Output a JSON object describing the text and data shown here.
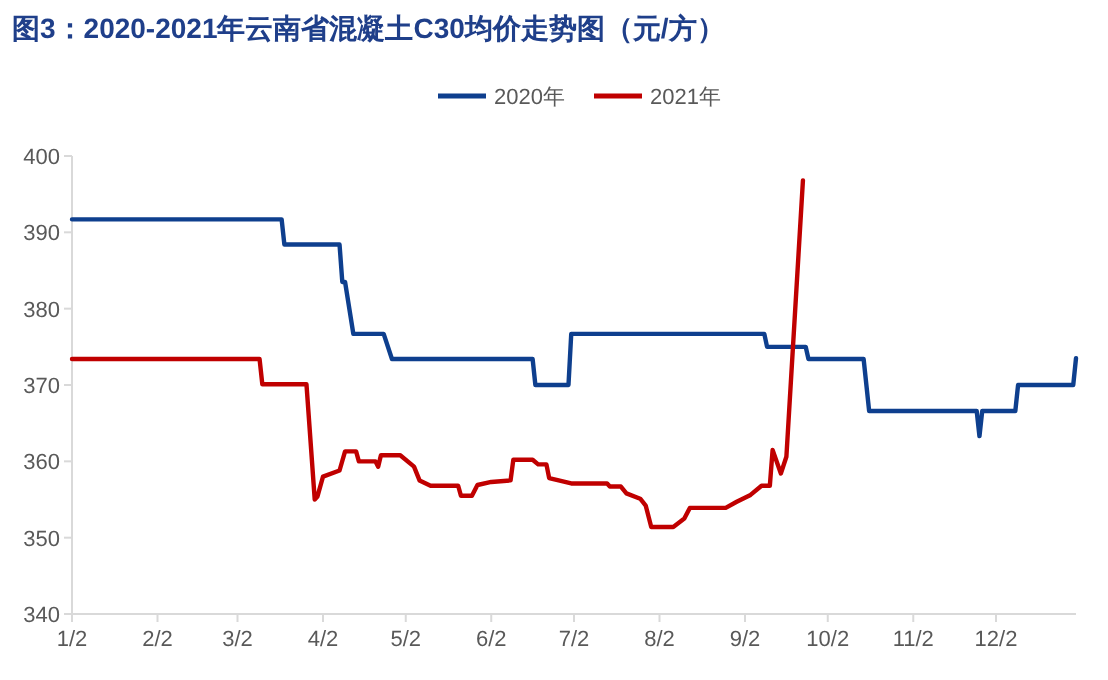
{
  "chart_data": {
    "type": "line",
    "title": "图3：2020-2021年云南省混凝土C30均价走势图（元/方）",
    "legend": "top",
    "grid": false,
    "xlim": [
      "--01-02",
      "--12-31"
    ],
    "xticks": [
      {
        "value": "--01-02",
        "label": "1/2"
      },
      {
        "value": "--02-02",
        "label": "2/2"
      },
      {
        "value": "--03-02",
        "label": "3/2"
      },
      {
        "value": "--04-02",
        "label": "4/2"
      },
      {
        "value": "--05-02",
        "label": "5/2"
      },
      {
        "value": "--06-02",
        "label": "6/2"
      },
      {
        "value": "--07-02",
        "label": "7/2"
      },
      {
        "value": "--08-02",
        "label": "8/2"
      },
      {
        "value": "--09-02",
        "label": "9/2"
      },
      {
        "value": "--10-02",
        "label": "10/2"
      },
      {
        "value": "--11-02",
        "label": "11/2"
      },
      {
        "value": "--12-02",
        "label": "12/2"
      }
    ],
    "ylim": [
      340,
      400
    ],
    "yticks": [
      340,
      350,
      360,
      370,
      380,
      390,
      400
    ],
    "series": [
      {
        "name": "2020年",
        "color": "#0e3f8e",
        "x": [
          "--01-02",
          "--03-18",
          "--03-19",
          "--04-08",
          "--04-09",
          "--04-10",
          "--04-13",
          "--04-24",
          "--04-27",
          "--06-17",
          "--06-18",
          "--06-30",
          "--07-01",
          "--09-09",
          "--09-10",
          "--09-24",
          "--09-25",
          "--10-15",
          "--10-17",
          "--11-25",
          "--11-26",
          "--11-27",
          "--12-09",
          "--12-10",
          "--12-30",
          "--12-31"
        ],
        "values": [
          391.7,
          391.7,
          388.4,
          388.4,
          383.5,
          383.5,
          376.7,
          376.7,
          373.4,
          373.4,
          370.0,
          370.0,
          376.7,
          376.7,
          375.0,
          375.0,
          373.4,
          373.4,
          366.6,
          366.6,
          363.3,
          366.6,
          366.6,
          370.0,
          370.0,
          373.5
        ]
      },
      {
        "name": "2021年",
        "color": "#c00000",
        "x": [
          "--01-02",
          "--03-10",
          "--03-11",
          "--03-27",
          "--03-30",
          "--03-31",
          "--04-02",
          "--04-08",
          "--04-10",
          "--04-14",
          "--04-15",
          "--04-21",
          "--04-22",
          "--04-23",
          "--04-30",
          "--05-05",
          "--05-07",
          "--05-11",
          "--05-21",
          "--05-22",
          "--05-26",
          "--05-28",
          "--06-02",
          "--06-09",
          "--06-10",
          "--06-17",
          "--06-19",
          "--06-22",
          "--06-23",
          "--07-01",
          "--07-14",
          "--07-15",
          "--07-19",
          "--07-21",
          "--07-26",
          "--07-28",
          "--07-30",
          "--08-07",
          "--08-11",
          "--08-13",
          "--08-26",
          "--08-30",
          "--09-04",
          "--09-08",
          "--09-11",
          "--09-12",
          "--09-15",
          "--09-17",
          "--09-23"
        ],
        "values": [
          373.4,
          373.4,
          370.1,
          370.1,
          355.0,
          355.4,
          358.0,
          358.8,
          361.3,
          361.3,
          360.0,
          360.0,
          359.3,
          360.8,
          360.8,
          359.3,
          357.5,
          356.8,
          356.8,
          355.5,
          355.5,
          356.9,
          357.3,
          357.5,
          360.2,
          360.2,
          359.6,
          359.6,
          357.8,
          357.1,
          357.1,
          356.7,
          356.7,
          355.8,
          355.1,
          354.2,
          351.4,
          351.4,
          352.5,
          353.9,
          353.9,
          354.7,
          355.6,
          356.8,
          356.8,
          361.5,
          358.4,
          360.6,
          396.8
        ]
      }
    ]
  }
}
